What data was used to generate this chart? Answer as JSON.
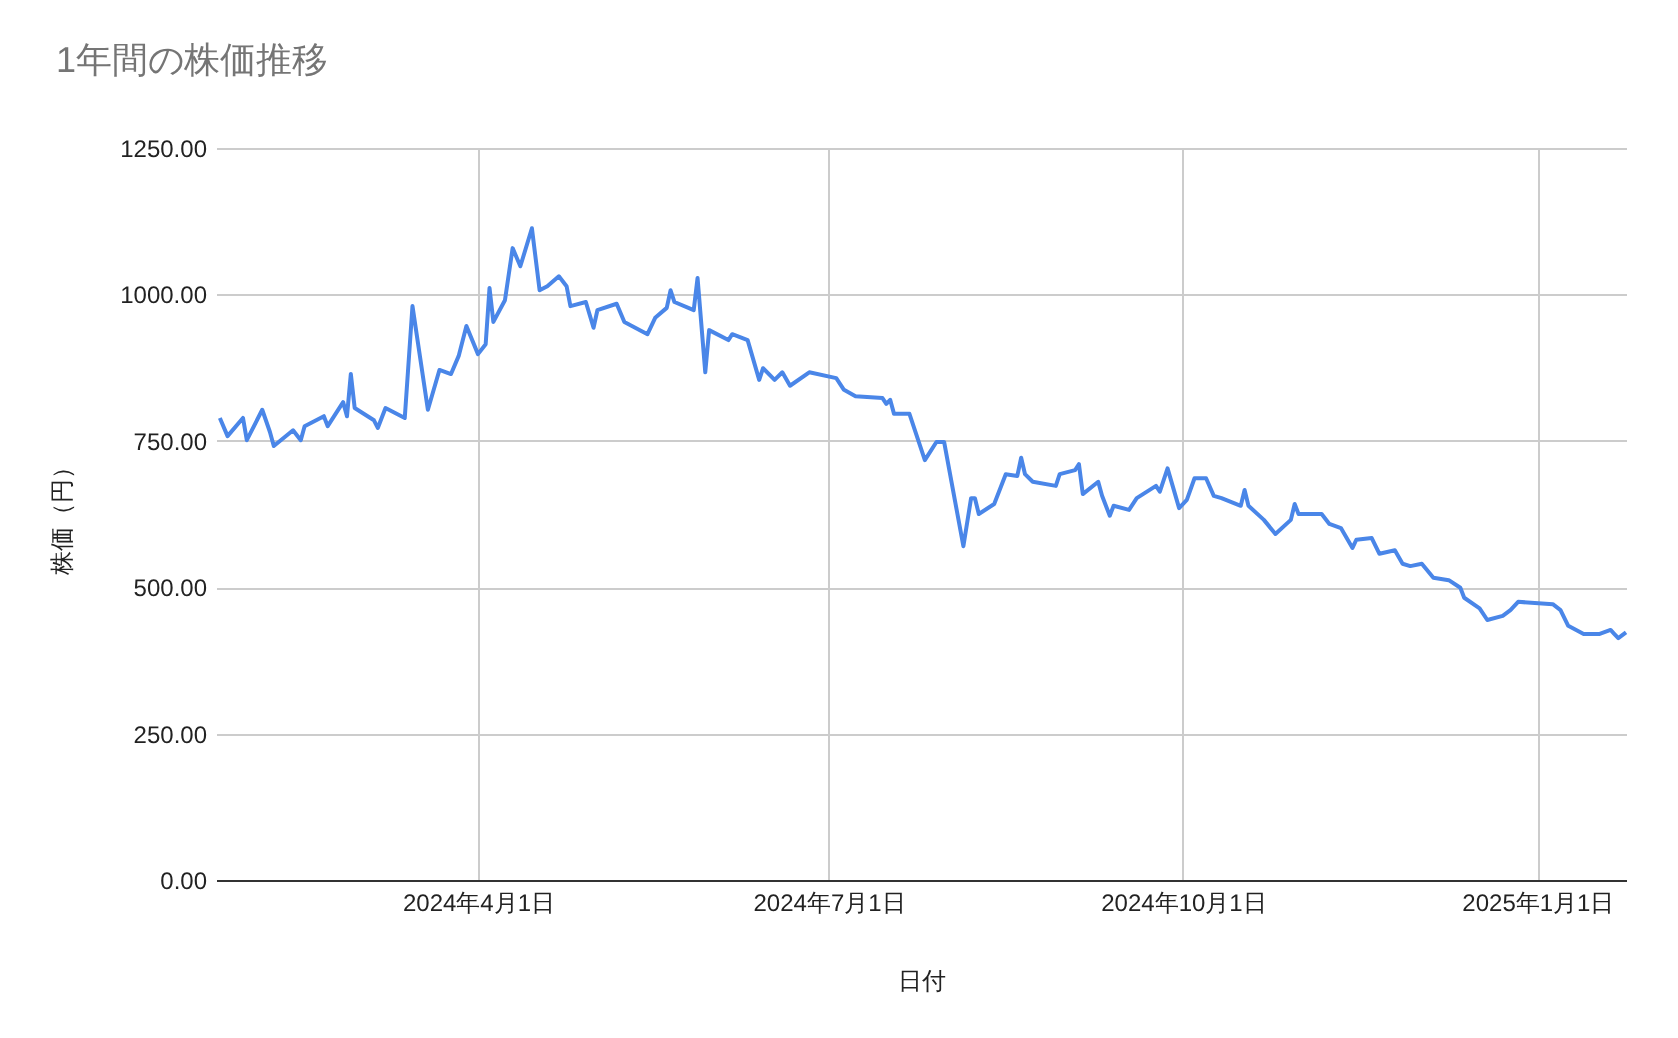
{
  "chart_data": {
    "type": "line",
    "title": "1年間の株価推移",
    "xlabel": "日付",
    "ylabel": "株価（円）",
    "x": [
      "2024-01-25",
      "2024-01-27",
      "2024-01-31",
      "2024-02-01",
      "2024-02-05",
      "2024-02-07",
      "2024-02-08",
      "2024-02-13",
      "2024-02-15",
      "2024-02-16",
      "2024-02-21",
      "2024-02-22",
      "2024-02-26",
      "2024-02-27",
      "2024-02-28",
      "2024-02-29",
      "2024-03-05",
      "2024-03-06",
      "2024-03-08",
      "2024-03-13",
      "2024-03-15",
      "2024-03-19",
      "2024-03-22",
      "2024-03-25",
      "2024-03-27",
      "2024-03-29",
      "2024-04-01",
      "2024-04-03",
      "2024-04-04",
      "2024-04-05",
      "2024-04-08",
      "2024-04-10",
      "2024-04-12",
      "2024-04-15",
      "2024-04-17",
      "2024-04-19",
      "2024-04-22",
      "2024-04-24",
      "2024-04-25",
      "2024-04-29",
      "2024-05-01",
      "2024-05-02",
      "2024-05-07",
      "2024-05-09",
      "2024-05-15",
      "2024-05-17",
      "2024-05-20",
      "2024-05-21",
      "2024-05-22",
      "2024-05-27",
      "2024-05-28",
      "2024-05-30",
      "2024-05-31",
      "2024-06-05",
      "2024-06-06",
      "2024-06-10",
      "2024-06-13",
      "2024-06-14",
      "2024-06-17",
      "2024-06-19",
      "2024-06-21",
      "2024-06-26",
      "2024-07-03",
      "2024-07-05",
      "2024-07-08",
      "2024-07-15",
      "2024-07-16",
      "2024-07-17",
      "2024-07-18",
      "2024-07-22",
      "2024-07-26",
      "2024-07-29",
      "2024-07-31",
      "2024-08-05",
      "2024-08-07",
      "2024-08-08",
      "2024-08-09",
      "2024-08-13",
      "2024-08-16",
      "2024-08-19",
      "2024-08-20",
      "2024-08-21",
      "2024-08-23",
      "2024-08-29",
      "2024-08-30",
      "2024-09-03",
      "2024-09-04",
      "2024-09-05",
      "2024-09-09",
      "2024-09-10",
      "2024-09-12",
      "2024-09-13",
      "2024-09-17",
      "2024-09-19",
      "2024-09-24",
      "2024-09-25",
      "2024-09-27",
      "2024-09-30",
      "2024-10-02",
      "2024-10-04",
      "2024-10-07",
      "2024-10-09",
      "2024-10-11",
      "2024-10-16",
      "2024-10-17",
      "2024-10-18",
      "2024-10-22",
      "2024-10-25",
      "2024-10-29",
      "2024-10-30",
      "2024-10-31",
      "2024-11-06",
      "2024-11-08",
      "2024-11-11",
      "2024-11-14",
      "2024-11-15",
      "2024-11-19",
      "2024-11-21",
      "2024-11-25",
      "2024-11-27",
      "2024-11-29",
      "2024-12-02",
      "2024-12-05",
      "2024-12-09",
      "2024-12-12",
      "2024-12-13",
      "2024-12-17",
      "2024-12-19",
      "2024-12-23",
      "2024-12-25",
      "2024-12-27",
      "2025-01-05",
      "2025-01-07",
      "2025-01-09",
      "2025-01-13",
      "2025-01-17",
      "2025-01-20",
      "2025-01-21",
      "2025-01-22",
      "2025-01-24"
    ],
    "series": [
      {
        "color": "#4a86e8",
        "values": [
          789,
          758,
          789,
          751,
          803,
          765,
          741,
          768,
          751,
          775,
          792,
          775,
          816,
          792,
          864,
          806,
          785,
          772,
          806,
          789,
          980,
          803,
          871,
          864,
          895,
          946,
          898,
          915,
          1011,
          953,
          990,
          1079,
          1048,
          1113,
          1007,
          1014,
          1031,
          1014,
          980,
          987,
          943,
          973,
          984,
          953,
          932,
          960,
          977,
          1007,
          987,
          973,
          1028,
          867,
          939,
          922,
          932,
          922,
          854,
          874,
          854,
          867,
          844,
          867,
          857,
          837,
          826,
          823,
          813,
          820,
          796,
          796,
          717,
          748,
          748,
          570,
          652,
          652,
          625,
          642,
          693,
          690,
          721,
          693,
          680,
          673,
          693,
          700,
          710,
          659,
          680,
          656,
          622,
          639,
          632,
          652,
          673,
          663,
          703,
          635,
          649,
          686,
          686,
          656,
          652,
          639,
          666,
          639,
          615,
          591,
          615,
          642,
          625,
          625,
          608,
          601,
          567,
          581,
          584,
          557,
          563,
          540,
          536,
          540,
          516,
          512,
          499,
          482,
          464,
          444,
          451,
          461,
          475,
          471,
          461,
          434,
          420,
          420,
          427,
          420,
          413,
          423
        ]
      }
    ],
    "xlim": [
      "2024-01-24",
      "2025-01-24"
    ],
    "xticks": [
      {
        "value": "2024-04-01",
        "label": "2024年4月1日"
      },
      {
        "value": "2024-07-01",
        "label": "2024年7月1日"
      },
      {
        "value": "2024-10-01",
        "label": "2024年10月1日"
      },
      {
        "value": "2025-01-01",
        "label": "2025年1月1日"
      }
    ],
    "ylim": [
      0,
      1250
    ],
    "yticks": [
      {
        "value": 0,
        "label": "0.00"
      },
      {
        "value": 250,
        "label": "250.00"
      },
      {
        "value": 500,
        "label": "500.00"
      },
      {
        "value": 750,
        "label": "750.00"
      },
      {
        "value": 1000,
        "label": "1000.00"
      },
      {
        "value": 1250,
        "label": "1250.00"
      }
    ],
    "grid": true,
    "marker": "none",
    "line_style": "solid"
  }
}
